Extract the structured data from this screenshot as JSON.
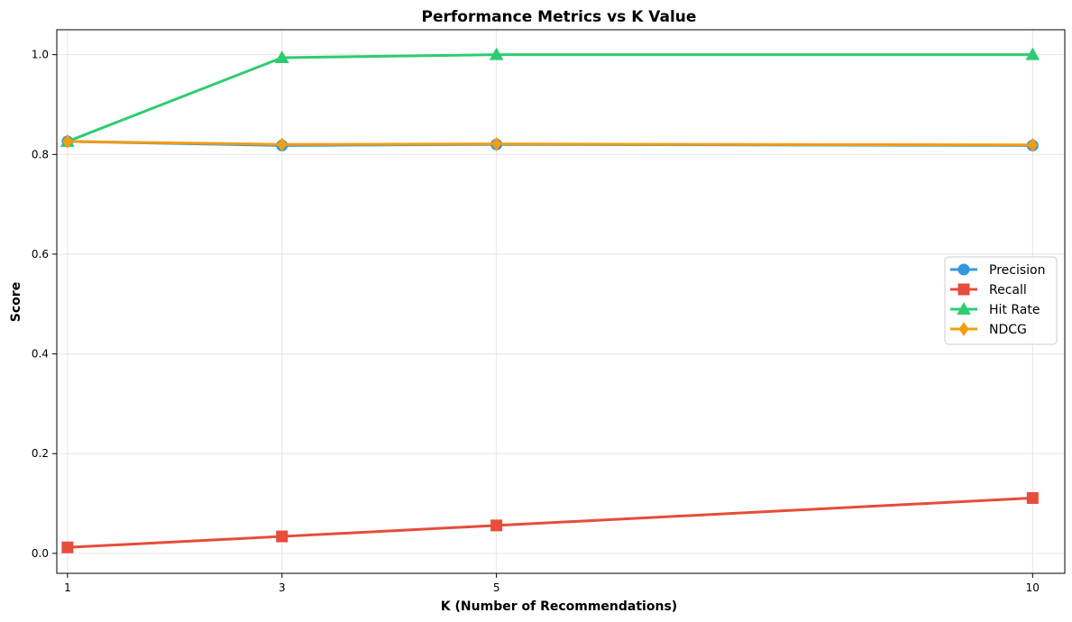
{
  "chart_data": {
    "type": "line",
    "title": "Performance Metrics vs K Value",
    "xlabel": "K (Number of Recommendations)",
    "ylabel": "Score",
    "x": [
      1,
      3,
      5,
      10
    ],
    "x_ticks": [
      "1",
      "3",
      "5",
      "10"
    ],
    "xlim": [
      0.9,
      10.3
    ],
    "ylim": [
      -0.04,
      1.05
    ],
    "y_ticks": [
      "0.0",
      "0.2",
      "0.4",
      "0.6",
      "0.8",
      "1.0"
    ],
    "y_tick_values": [
      0.0,
      0.2,
      0.4,
      0.6,
      0.8,
      1.0
    ],
    "grid": true,
    "legend_position": "center-right",
    "series": [
      {
        "name": "Precision",
        "values": [
          0.826,
          0.818,
          0.82,
          0.818
        ],
        "color": "#3498db",
        "marker": "circle"
      },
      {
        "name": "Recall",
        "values": [
          0.012,
          0.034,
          0.056,
          0.111
        ],
        "color": "#e74c3c",
        "marker": "square"
      },
      {
        "name": "Hit Rate",
        "values": [
          0.826,
          0.994,
          1.0,
          1.0
        ],
        "color": "#2ecc71",
        "marker": "triangle"
      },
      {
        "name": "NDCG",
        "values": [
          0.826,
          0.82,
          0.821,
          0.819
        ],
        "color": "#f39c12",
        "marker": "diamond"
      }
    ]
  }
}
